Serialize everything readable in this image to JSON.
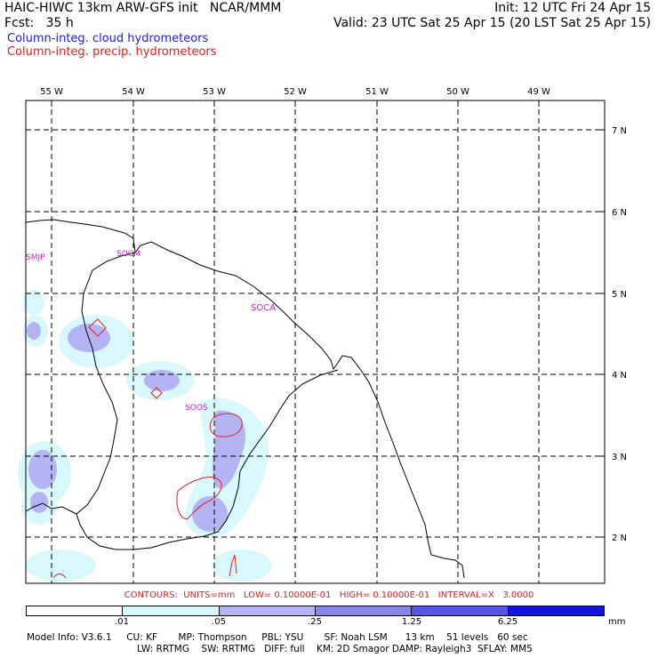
{
  "header": {
    "title": "HAIC-HIWC 13km ARW-GFS init   NCAR/MMM",
    "forecast": "Fcst:   35 h",
    "init": "Init: 12 UTC Fri 24 Apr 15",
    "valid": "Valid: 23 UTC Sat 25 Apr 15 (20 LST Sat 25 Apr 15)"
  },
  "legend": {
    "cloud": "Column-integ. cloud hydrometeors",
    "precip": "Column-integ. precip. hydrometeors"
  },
  "map": {
    "lon_labels": [
      "55 W",
      "54 W",
      "53 W",
      "52 W",
      "51 W",
      "50 W",
      "49 W"
    ],
    "lat_labels": [
      "7 N",
      "6 N",
      "5 N",
      "4 N",
      "3 N",
      "2 N"
    ],
    "stations": [
      "SMJP",
      "SOCM",
      "SOCA",
      "SOOS"
    ]
  },
  "contours": "CONTOURS:  UNITS=mm   LOW= 0.10000E-01   HIGH= 0.10000E-01   INTERVAL=X   3.0000",
  "colorbar": {
    "ticks": [
      ".01",
      ".05",
      ".25",
      "1.25",
      "6.25"
    ],
    "unit": "mm",
    "colors": [
      "#ffffff",
      "#d8f8fc",
      "#b4b4f4",
      "#8686ec",
      "#5656e6",
      "#1414e0"
    ]
  },
  "model_info": {
    "line1": "Model Info: V3.6.1     CU: KF       MP: Thompson     PBL: YSU       SF: Noah LSM      13 km    51 levels   60 sec",
    "line2": "LW: RRTMG    SW: RRTMG   DIFF: full    KM: 2D Smagor DAMP: Rayleigh3  SFLAY: MM5"
  }
}
